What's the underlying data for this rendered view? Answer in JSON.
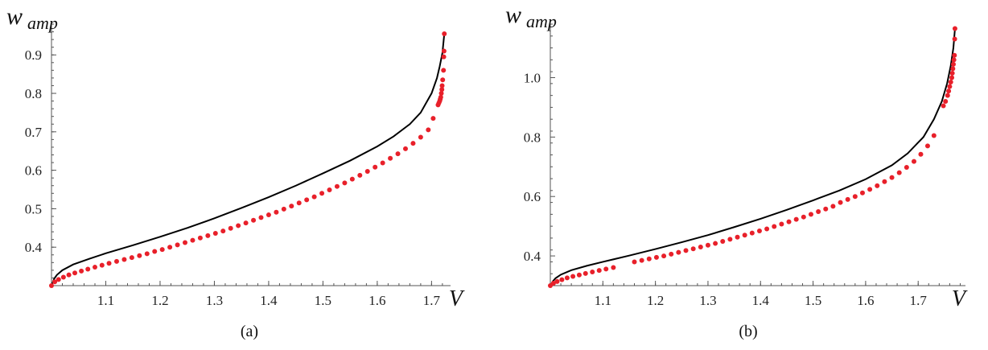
{
  "chart_data": [
    {
      "type": "line",
      "panel_label": "(a)",
      "xlabel": "V",
      "ylabel": "w",
      "ylabel_sub": "amp",
      "xlim": [
        1.0,
        1.735
      ],
      "ylim": [
        0.3,
        0.98
      ],
      "x_ticks": [
        1.1,
        1.2,
        1.3,
        1.4,
        1.5,
        1.6,
        1.7
      ],
      "y_ticks": [
        0.4,
        0.5,
        0.6,
        0.7,
        0.8,
        0.9
      ],
      "x_tick_labels": [
        "1.1",
        "1.2",
        "1.3",
        "1.4",
        "1.5",
        "1.6",
        "1.7"
      ],
      "y_tick_labels": [
        "0.4",
        "0.5",
        "0.6",
        "0.7",
        "0.8",
        "0.9"
      ],
      "grid": false,
      "series": [
        {
          "style": "line",
          "color": "#000000",
          "x": [
            1.0,
            1.005,
            1.01,
            1.02,
            1.04,
            1.07,
            1.1,
            1.15,
            1.2,
            1.25,
            1.3,
            1.35,
            1.4,
            1.45,
            1.5,
            1.55,
            1.6,
            1.63,
            1.66,
            1.68,
            1.7,
            1.71,
            1.715,
            1.72,
            1.7235
          ],
          "y": [
            0.3,
            0.318,
            0.328,
            0.34,
            0.355,
            0.37,
            0.384,
            0.405,
            0.427,
            0.45,
            0.475,
            0.502,
            0.53,
            0.56,
            0.592,
            0.625,
            0.662,
            0.688,
            0.72,
            0.75,
            0.8,
            0.84,
            0.87,
            0.905,
            0.955
          ]
        },
        {
          "style": "dots",
          "color": "#e8202a",
          "x": [
            1.0,
            1.006,
            1.013,
            1.022,
            1.032,
            1.043,
            1.055,
            1.067,
            1.08,
            1.093,
            1.106,
            1.12,
            1.134,
            1.148,
            1.162,
            1.176,
            1.19,
            1.204,
            1.218,
            1.232,
            1.246,
            1.26,
            1.274,
            1.288,
            1.302,
            1.316,
            1.33,
            1.344,
            1.358,
            1.372,
            1.386,
            1.4,
            1.414,
            1.428,
            1.442,
            1.456,
            1.47,
            1.484,
            1.498,
            1.512,
            1.526,
            1.54,
            1.554,
            1.568,
            1.582,
            1.596,
            1.61,
            1.624,
            1.638,
            1.652,
            1.666,
            1.68,
            1.694,
            1.703,
            1.712,
            1.7135,
            1.715,
            1.716,
            1.717,
            1.718,
            1.719,
            1.7195,
            1.7205,
            1.722,
            1.7225,
            1.723,
            1.7235
          ],
          "y": [
            0.3,
            0.31,
            0.316,
            0.322,
            0.328,
            0.333,
            0.338,
            0.343,
            0.348,
            0.353,
            0.358,
            0.363,
            0.368,
            0.373,
            0.378,
            0.383,
            0.389,
            0.394,
            0.4,
            0.406,
            0.412,
            0.418,
            0.424,
            0.43,
            0.436,
            0.442,
            0.449,
            0.456,
            0.463,
            0.47,
            0.477,
            0.484,
            0.491,
            0.499,
            0.507,
            0.515,
            0.523,
            0.531,
            0.54,
            0.549,
            0.558,
            0.567,
            0.577,
            0.587,
            0.597,
            0.608,
            0.619,
            0.631,
            0.643,
            0.656,
            0.67,
            0.686,
            0.705,
            0.735,
            0.77,
            0.775,
            0.78,
            0.785,
            0.79,
            0.8,
            0.81,
            0.82,
            0.835,
            0.86,
            0.895,
            0.91,
            0.955
          ]
        }
      ]
    },
    {
      "type": "line",
      "panel_label": "(b)",
      "xlabel": "V",
      "ylabel": "w",
      "ylabel_sub": "amp",
      "xlim": [
        1.0,
        1.79
      ],
      "ylim": [
        0.3,
        1.18
      ],
      "x_ticks": [
        1.1,
        1.2,
        1.3,
        1.4,
        1.5,
        1.6,
        1.7
      ],
      "y_ticks": [
        0.4,
        0.6,
        0.8,
        1.0
      ],
      "x_tick_labels": [
        "1.1",
        "1.2",
        "1.3",
        "1.4",
        "1.5",
        "1.6",
        "1.7"
      ],
      "y_tick_labels": [
        "0.4",
        "0.6",
        "0.8",
        "1.0"
      ],
      "grid": false,
      "series": [
        {
          "style": "line",
          "color": "#000000",
          "x": [
            1.0,
            1.005,
            1.01,
            1.02,
            1.04,
            1.07,
            1.1,
            1.15,
            1.2,
            1.25,
            1.3,
            1.35,
            1.4,
            1.45,
            1.5,
            1.55,
            1.6,
            1.65,
            1.68,
            1.71,
            1.73,
            1.745,
            1.755,
            1.762,
            1.767,
            1.77
          ],
          "y": [
            0.3,
            0.315,
            0.325,
            0.337,
            0.352,
            0.367,
            0.38,
            0.401,
            0.423,
            0.446,
            0.47,
            0.497,
            0.525,
            0.555,
            0.587,
            0.62,
            0.658,
            0.705,
            0.745,
            0.8,
            0.86,
            0.92,
            0.98,
            1.04,
            1.1,
            1.165
          ]
        },
        {
          "style": "dots",
          "color": "#e8202a",
          "x": [
            1.0,
            1.006,
            1.013,
            1.022,
            1.032,
            1.043,
            1.055,
            1.067,
            1.08,
            1.093,
            1.106,
            1.12,
            1.16,
            1.174,
            1.188,
            1.202,
            1.216,
            1.23,
            1.244,
            1.258,
            1.272,
            1.286,
            1.3,
            1.314,
            1.328,
            1.342,
            1.356,
            1.37,
            1.384,
            1.398,
            1.412,
            1.426,
            1.44,
            1.454,
            1.468,
            1.482,
            1.496,
            1.51,
            1.524,
            1.538,
            1.552,
            1.566,
            1.58,
            1.594,
            1.608,
            1.622,
            1.636,
            1.65,
            1.664,
            1.678,
            1.692,
            1.705,
            1.718,
            1.73,
            1.748,
            1.752,
            1.756,
            1.758,
            1.76,
            1.762,
            1.764,
            1.765,
            1.766,
            1.767,
            1.768,
            1.769,
            1.7695,
            1.77
          ],
          "y": [
            0.3,
            0.308,
            0.314,
            0.32,
            0.326,
            0.331,
            0.336,
            0.341,
            0.346,
            0.351,
            0.356,
            0.361,
            0.38,
            0.385,
            0.39,
            0.395,
            0.4,
            0.406,
            0.412,
            0.418,
            0.424,
            0.43,
            0.436,
            0.442,
            0.449,
            0.456,
            0.463,
            0.47,
            0.477,
            0.484,
            0.491,
            0.499,
            0.507,
            0.515,
            0.523,
            0.531,
            0.54,
            0.549,
            0.558,
            0.567,
            0.58,
            0.59,
            0.6,
            0.612,
            0.624,
            0.636,
            0.65,
            0.664,
            0.68,
            0.698,
            0.718,
            0.742,
            0.77,
            0.805,
            0.905,
            0.92,
            0.94,
            0.955,
            0.97,
            0.985,
            1.0,
            1.015,
            1.03,
            1.045,
            1.06,
            1.075,
            1.13,
            1.165
          ]
        }
      ]
    }
  ]
}
